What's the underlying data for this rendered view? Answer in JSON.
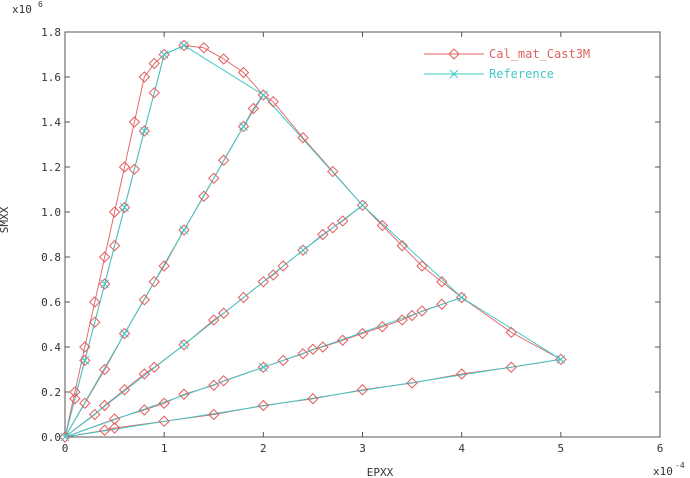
{
  "chart_data": {
    "type": "line",
    "xlabel": "EPXX",
    "ylabel": "SMXX",
    "x_multiplier": {
      "base": "x10",
      "exponent": "-4"
    },
    "y_multiplier": {
      "base": "x10",
      "exponent": "6"
    },
    "xlim": [
      0,
      6
    ],
    "ylim": [
      0,
      1.8
    ],
    "x_ticks": [
      "0",
      "1",
      "2",
      "3",
      "4",
      "5",
      "6"
    ],
    "y_ticks": [
      "0.0",
      "0.2",
      "0.4",
      "0.6",
      "0.8",
      "1.0",
      "1.2",
      "1.4",
      "1.6",
      "1.8"
    ],
    "grid": false,
    "legend_position": "top-right",
    "series": [
      {
        "name": "Cal_mat_Cast3M",
        "color": "#e06060",
        "marker": "diamond",
        "segments": [
          [
            [
              0,
              0
            ],
            [
              0.1,
              0.2
            ],
            [
              0.2,
              0.4
            ],
            [
              0.3,
              0.6
            ],
            [
              0.4,
              0.8
            ],
            [
              0.5,
              1.0
            ],
            [
              0.6,
              1.2
            ],
            [
              0.7,
              1.4
            ],
            [
              0.8,
              1.6
            ],
            [
              0.9,
              1.66
            ],
            [
              1.0,
              1.7
            ],
            [
              1.2,
              1.74
            ]
          ],
          [
            [
              1.2,
              1.74
            ],
            [
              1.4,
              1.73
            ],
            [
              1.6,
              1.68
            ],
            [
              1.8,
              1.62
            ],
            [
              2.0,
              1.52
            ],
            [
              2.1,
              1.49
            ],
            [
              2.4,
              1.33
            ],
            [
              2.7,
              1.18
            ],
            [
              3.0,
              1.03
            ],
            [
              3.2,
              0.94
            ],
            [
              3.4,
              0.85
            ],
            [
              3.6,
              0.76
            ],
            [
              3.8,
              0.69
            ],
            [
              4.0,
              0.62
            ],
            [
              4.5,
              0.465
            ],
            [
              5.0,
              0.345
            ]
          ],
          [
            [
              0,
              0
            ],
            [
              0.1,
              0.17
            ],
            [
              0.2,
              0.34
            ],
            [
              0.3,
              0.51
            ],
            [
              0.4,
              0.68
            ],
            [
              0.5,
              0.85
            ],
            [
              0.6,
              1.02
            ],
            [
              0.7,
              1.19
            ],
            [
              0.8,
              1.36
            ],
            [
              0.9,
              1.53
            ],
            [
              1.0,
              1.7
            ]
          ],
          [
            [
              0,
              0
            ],
            [
              0.2,
              0.15
            ],
            [
              0.4,
              0.3
            ],
            [
              0.6,
              0.46
            ],
            [
              0.8,
              0.61
            ],
            [
              0.9,
              0.69
            ],
            [
              1.0,
              0.76
            ],
            [
              1.2,
              0.92
            ],
            [
              1.4,
              1.07
            ],
            [
              1.5,
              1.15
            ],
            [
              1.6,
              1.23
            ],
            [
              1.8,
              1.38
            ],
            [
              1.9,
              1.46
            ],
            [
              2.0,
              1.52
            ]
          ],
          [
            [
              0,
              0
            ],
            [
              0.3,
              0.1
            ],
            [
              0.4,
              0.14
            ],
            [
              0.6,
              0.21
            ],
            [
              0.8,
              0.28
            ],
            [
              0.9,
              0.31
            ],
            [
              1.2,
              0.41
            ],
            [
              1.5,
              0.52
            ],
            [
              1.6,
              0.55
            ],
            [
              1.8,
              0.62
            ],
            [
              2.0,
              0.69
            ],
            [
              2.1,
              0.72
            ],
            [
              2.2,
              0.76
            ],
            [
              2.4,
              0.83
            ],
            [
              2.6,
              0.9
            ],
            [
              2.7,
              0.93
            ],
            [
              2.8,
              0.96
            ],
            [
              3.0,
              1.03
            ]
          ],
          [
            [
              0,
              0
            ],
            [
              0.5,
              0.08
            ],
            [
              0.8,
              0.12
            ],
            [
              1.0,
              0.15
            ],
            [
              1.2,
              0.19
            ],
            [
              1.5,
              0.23
            ],
            [
              1.6,
              0.25
            ],
            [
              2.0,
              0.31
            ],
            [
              2.2,
              0.34
            ],
            [
              2.4,
              0.37
            ],
            [
              2.5,
              0.39
            ],
            [
              2.6,
              0.4
            ],
            [
              2.8,
              0.43
            ],
            [
              3.0,
              0.46
            ],
            [
              3.2,
              0.49
            ],
            [
              3.4,
              0.52
            ],
            [
              3.5,
              0.54
            ],
            [
              3.6,
              0.56
            ],
            [
              3.8,
              0.59
            ],
            [
              4.0,
              0.62
            ]
          ],
          [
            [
              0,
              0
            ],
            [
              0.4,
              0.03
            ],
            [
              0.5,
              0.04
            ],
            [
              1.0,
              0.07
            ],
            [
              1.5,
              0.1
            ],
            [
              2.0,
              0.14
            ],
            [
              2.5,
              0.17
            ],
            [
              3.0,
              0.21
            ],
            [
              3.5,
              0.24
            ],
            [
              4.0,
              0.28
            ],
            [
              4.5,
              0.31
            ],
            [
              5.0,
              0.345
            ]
          ]
        ]
      },
      {
        "name": "Reference",
        "color": "#40c8c8",
        "marker": "cross",
        "segments": [
          [
            [
              0,
              0
            ],
            [
              0.2,
              0.34
            ],
            [
              0.4,
              0.68
            ],
            [
              0.6,
              1.02
            ],
            [
              0.8,
              1.36
            ],
            [
              1.0,
              1.7
            ]
          ],
          [
            [
              0,
              0
            ],
            [
              0.6,
              0.46
            ],
            [
              1.2,
              0.92
            ],
            [
              1.8,
              1.38
            ],
            [
              2.0,
              1.52
            ]
          ],
          [
            [
              0,
              0
            ],
            [
              1.2,
              0.41
            ],
            [
              2.4,
              0.83
            ],
            [
              3.0,
              1.03
            ]
          ],
          [
            [
              0,
              0
            ],
            [
              2.0,
              0.31
            ],
            [
              4.0,
              0.62
            ]
          ],
          [
            [
              0,
              0
            ],
            [
              5.0,
              0.345
            ]
          ],
          [
            [
              1.0,
              1.7
            ],
            [
              1.2,
              1.74
            ],
            [
              2.0,
              1.52
            ],
            [
              3.0,
              1.03
            ],
            [
              4.0,
              0.62
            ],
            [
              5.0,
              0.345
            ]
          ]
        ]
      }
    ]
  }
}
